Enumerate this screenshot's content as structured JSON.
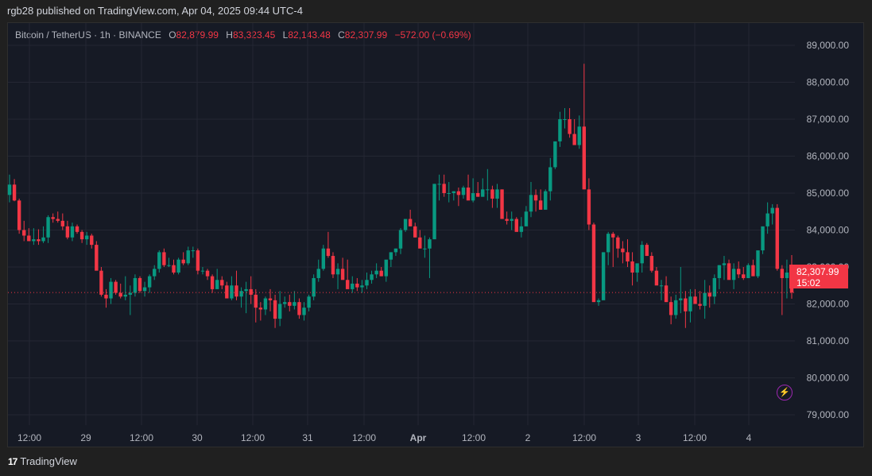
{
  "header": {
    "published": "rgb28 published on TradingView.com, Apr 04, 2025 09:44 UTC-4"
  },
  "legend": {
    "symbol": "Bitcoin / TetherUS · 1h · BINANCE",
    "open_label": "O",
    "open": "82,879.99",
    "high_label": "H",
    "high": "83,323.45",
    "low_label": "L",
    "low": "82,143.48",
    "close_label": "C",
    "close": "82,307.99",
    "change": "−572.00 (−0.69%)"
  },
  "price_tag": {
    "price": "82,307.99",
    "countdown": "15:02"
  },
  "footer": {
    "brand": "TradingView",
    "logo": "17"
  },
  "colors": {
    "up": "#089981",
    "down": "#f23645",
    "bg": "#161a25",
    "grid": "#242733",
    "text": "#b2b5be",
    "accent_bolt": "#9c27b0"
  },
  "chart_data": {
    "type": "candlestick",
    "title": "Bitcoin / TetherUS · 1h · BINANCE",
    "xlabel": "",
    "ylabel": "",
    "ylim": [
      78600,
      89600
    ],
    "y_ticks": [
      "89,000.00",
      "88,000.00",
      "87,000.00",
      "86,000.00",
      "85,000.00",
      "84,000.00",
      "83,000.00",
      "82,000.00",
      "81,000.00",
      "80,000.00",
      "79,000.00"
    ],
    "y_tick_values": [
      89000,
      88000,
      87000,
      86000,
      85000,
      84000,
      83000,
      82000,
      81000,
      80000,
      79000
    ],
    "x_ticks": [
      {
        "label": "12:00",
        "x": 37
      },
      {
        "label": "29",
        "x": 108
      },
      {
        "label": "12:00",
        "x": 178
      },
      {
        "label": "30",
        "x": 248
      },
      {
        "label": "12:00",
        "x": 318
      },
      {
        "label": "31",
        "x": 387
      },
      {
        "label": "12:00",
        "x": 458
      },
      {
        "label": "Apr",
        "x": 526,
        "bold": true
      },
      {
        "label": "12:00",
        "x": 596
      },
      {
        "label": "2",
        "x": 664
      },
      {
        "label": "12:00",
        "x": 735
      },
      {
        "label": "3",
        "x": 803
      },
      {
        "label": "12:00",
        "x": 874
      },
      {
        "label": "4",
        "x": 942
      }
    ],
    "last_price": 82307.99,
    "grid": true,
    "candles_ohlc": [
      [
        84950,
        85500,
        84750,
        85230
      ],
      [
        85230,
        85380,
        84780,
        84800
      ],
      [
        84800,
        84850,
        83900,
        84000
      ],
      [
        84000,
        84250,
        83700,
        83850
      ],
      [
        83850,
        84050,
        83700,
        83700
      ],
      [
        83700,
        84050,
        83600,
        83750
      ],
      [
        83750,
        84020,
        83600,
        83700
      ],
      [
        83700,
        84100,
        83650,
        83800
      ],
      [
        83800,
        84400,
        83650,
        84350
      ],
      [
        84350,
        84450,
        84200,
        84300
      ],
      [
        84300,
        84500,
        84200,
        84250
      ],
      [
        84250,
        84450,
        84000,
        84100
      ],
      [
        84100,
        84250,
        83750,
        83800
      ],
      [
        83800,
        84200,
        83700,
        84100
      ],
      [
        84100,
        84150,
        83900,
        83950
      ],
      [
        83950,
        84000,
        83650,
        83750
      ],
      [
        83750,
        83950,
        83600,
        83850
      ],
      [
        83850,
        83900,
        83500,
        83600
      ],
      [
        83600,
        83700,
        83000,
        82900
      ],
      [
        82900,
        83000,
        82200,
        82250
      ],
      [
        82250,
        82400,
        81900,
        82150
      ],
      [
        82150,
        82700,
        82000,
        82600
      ],
      [
        82600,
        82650,
        82250,
        82300
      ],
      [
        82300,
        82550,
        82150,
        82200
      ],
      [
        82200,
        82750,
        82100,
        82250
      ],
      [
        82250,
        82500,
        81700,
        82300
      ],
      [
        82300,
        82800,
        82200,
        82700
      ],
      [
        82700,
        82750,
        82300,
        82350
      ],
      [
        82350,
        82600,
        82200,
        82450
      ],
      [
        82450,
        82800,
        82300,
        82750
      ],
      [
        82750,
        83050,
        82650,
        82950
      ],
      [
        82950,
        83450,
        82850,
        83400
      ],
      [
        83400,
        83500,
        83000,
        83050
      ],
      [
        83050,
        83250,
        83000,
        83050
      ],
      [
        83050,
        83200,
        82800,
        82850
      ],
      [
        82850,
        83250,
        82800,
        83200
      ],
      [
        83200,
        83400,
        83050,
        83100
      ],
      [
        83100,
        83550,
        83050,
        83450
      ],
      [
        83450,
        83550,
        83250,
        83450
      ],
      [
        83450,
        83500,
        82800,
        82900
      ],
      [
        82900,
        83000,
        82800,
        82900
      ],
      [
        82900,
        82950,
        82650,
        82750
      ],
      [
        82750,
        82800,
        82300,
        82400
      ],
      [
        82400,
        82950,
        82450,
        82650
      ],
      [
        82650,
        82750,
        82400,
        82500
      ],
      [
        82500,
        82600,
        82200,
        82150
      ],
      [
        82150,
        82750,
        82100,
        82500
      ],
      [
        82500,
        82900,
        82100,
        82200
      ],
      [
        82200,
        82450,
        81900,
        82350
      ],
      [
        82350,
        82600,
        81750,
        82400
      ],
      [
        82400,
        82750,
        82000,
        82250
      ],
      [
        82250,
        82400,
        81500,
        81900
      ],
      [
        81900,
        82050,
        81550,
        81850
      ],
      [
        81850,
        82200,
        81700,
        82150
      ],
      [
        82150,
        82400,
        81800,
        82100
      ],
      [
        82100,
        82250,
        81350,
        81600
      ],
      [
        81600,
        82350,
        81400,
        82000
      ],
      [
        82000,
        82200,
        81900,
        82050
      ],
      [
        82050,
        82250,
        81800,
        81950
      ],
      [
        81950,
        82350,
        81850,
        82050
      ],
      [
        82050,
        82150,
        81600,
        81700
      ],
      [
        81700,
        82050,
        81550,
        81900
      ],
      [
        81900,
        82250,
        81800,
        82200
      ],
      [
        82200,
        82800,
        82100,
        82700
      ],
      [
        82700,
        83200,
        82600,
        82950
      ],
      [
        82950,
        83600,
        82900,
        83500
      ],
      [
        83500,
        83950,
        83250,
        83300
      ],
      [
        83300,
        83400,
        82700,
        82800
      ],
      [
        82800,
        83100,
        82400,
        82950
      ],
      [
        82950,
        83250,
        82900,
        82650
      ],
      [
        82650,
        83200,
        82600,
        82400
      ],
      [
        82400,
        82750,
        82300,
        82550
      ],
      [
        82550,
        82700,
        82350,
        82450
      ],
      [
        82450,
        82650,
        82300,
        82500
      ],
      [
        82500,
        82850,
        82400,
        82650
      ],
      [
        82650,
        82900,
        82550,
        82800
      ],
      [
        82800,
        83100,
        82700,
        82900
      ],
      [
        82900,
        83000,
        82750,
        82750
      ],
      [
        82750,
        83150,
        82600,
        83200
      ],
      [
        83200,
        83400,
        83000,
        83400
      ],
      [
        83400,
        83500,
        83300,
        83500
      ],
      [
        83500,
        84050,
        83350,
        84000
      ],
      [
        84000,
        84300,
        83950,
        84300
      ],
      [
        84300,
        84550,
        84100,
        84100
      ],
      [
        84100,
        84200,
        83800,
        83800
      ],
      [
        83800,
        84000,
        83600,
        83500
      ],
      [
        83500,
        83850,
        83250,
        83500
      ],
      [
        83500,
        83800,
        82700,
        83750
      ],
      [
        83750,
        85250,
        83800,
        85250
      ],
      [
        85250,
        85500,
        84800,
        85250
      ],
      [
        85250,
        85500,
        84900,
        85000
      ],
      [
        85000,
        85300,
        84750,
        85000
      ],
      [
        85000,
        85050,
        84800,
        85050
      ],
      [
        85050,
        85150,
        84650,
        84950
      ],
      [
        84950,
        85200,
        84850,
        85150
      ],
      [
        85150,
        85500,
        84900,
        84800
      ],
      [
        84800,
        85400,
        84750,
        85000
      ],
      [
        85000,
        85300,
        84900,
        84900
      ],
      [
        84900,
        85400,
        84900,
        85100
      ],
      [
        85100,
        85650,
        84800,
        85100
      ],
      [
        85100,
        85200,
        84600,
        84850
      ],
      [
        84850,
        85250,
        84600,
        85100
      ],
      [
        85100,
        85100,
        84500,
        84300
      ],
      [
        84300,
        84500,
        84150,
        84250
      ],
      [
        84250,
        84500,
        84000,
        84300
      ],
      [
        84300,
        84350,
        84050,
        83950
      ],
      [
        83950,
        84350,
        83800,
        84100
      ],
      [
        84100,
        84650,
        84150,
        84500
      ],
      [
        84500,
        85300,
        84350,
        84950
      ],
      [
        84950,
        85100,
        84500,
        84800
      ],
      [
        84800,
        85100,
        84550,
        84550
      ],
      [
        84550,
        85100,
        84550,
        85050
      ],
      [
        85050,
        85950,
        84800,
        85700
      ],
      [
        85700,
        86300,
        85650,
        86400
      ],
      [
        86400,
        87200,
        86250,
        87000
      ],
      [
        87000,
        87300,
        86750,
        87000
      ],
      [
        87000,
        87300,
        86500,
        86600
      ],
      [
        86600,
        87000,
        86400,
        86300
      ],
      [
        86300,
        87100,
        86200,
        86800
      ],
      [
        86800,
        88500,
        85650,
        85100
      ],
      [
        85100,
        85400,
        84000,
        84150
      ],
      [
        84150,
        84200,
        82250,
        82050
      ],
      [
        82050,
        82150,
        81950,
        82100
      ],
      [
        82100,
        83400,
        82300,
        83400
      ],
      [
        83400,
        83950,
        83050,
        83900
      ],
      [
        83900,
        83950,
        83000,
        83800
      ],
      [
        83800,
        83850,
        83250,
        83500
      ],
      [
        83500,
        83700,
        83100,
        83400
      ],
      [
        83400,
        83750,
        83000,
        83150
      ],
      [
        83150,
        83400,
        82500,
        82850
      ],
      [
        82850,
        83050,
        82600,
        83100
      ],
      [
        83100,
        83700,
        82850,
        83600
      ],
      [
        83600,
        83650,
        83300,
        83300
      ],
      [
        83300,
        83400,
        82850,
        82900
      ],
      [
        82900,
        83000,
        82550,
        82500
      ],
      [
        82500,
        82650,
        82100,
        82500
      ],
      [
        82500,
        82750,
        82200,
        82050
      ],
      [
        82050,
        82200,
        81450,
        81700
      ],
      [
        81700,
        82250,
        81600,
        82100
      ],
      [
        82100,
        83000,
        81750,
        82150
      ],
      [
        82150,
        82350,
        81350,
        81800
      ],
      [
        81800,
        82400,
        81500,
        82200
      ],
      [
        82200,
        82400,
        82000,
        82000
      ],
      [
        82000,
        82350,
        81850,
        81950
      ],
      [
        81950,
        82650,
        81600,
        82300
      ],
      [
        82300,
        82500,
        81900,
        82200
      ],
      [
        82200,
        82800,
        82000,
        82700
      ],
      [
        82700,
        83050,
        82400,
        83050
      ],
      [
        83050,
        83300,
        82650,
        83100
      ],
      [
        83100,
        83200,
        82700,
        82650
      ],
      [
        82650,
        83100,
        82400,
        82950
      ],
      [
        82950,
        83150,
        82700,
        82800
      ],
      [
        82800,
        83000,
        82650,
        82700
      ],
      [
        82700,
        83100,
        82700,
        83050
      ],
      [
        83050,
        83200,
        82800,
        82750
      ],
      [
        82750,
        83300,
        82700,
        83450
      ],
      [
        83450,
        83850,
        83350,
        84100
      ],
      [
        84100,
        84750,
        83900,
        84450
      ],
      [
        84450,
        84700,
        84150,
        84600
      ],
      [
        84600,
        84700,
        82900,
        82950
      ],
      [
        82950,
        83050,
        81700,
        82700
      ],
      [
        82700,
        83200,
        82150,
        82850
      ],
      [
        82879.99,
        83323.45,
        82143.48,
        82307.99
      ]
    ]
  }
}
